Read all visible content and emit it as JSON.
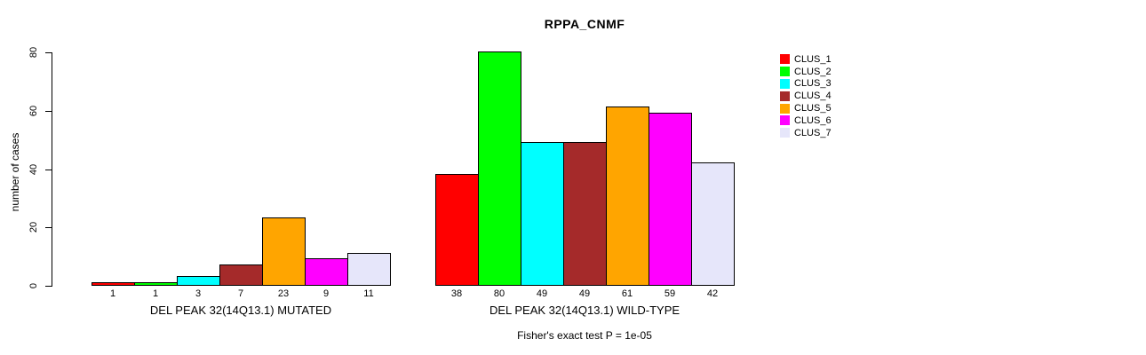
{
  "chart_data": {
    "type": "bar",
    "title": "RPPA_CNMF",
    "ylabel": "number of cases",
    "xlabel": "",
    "ylim": [
      0,
      80
    ],
    "yticks": [
      0,
      20,
      40,
      60,
      80
    ],
    "grid": false,
    "legend_position": "top-right",
    "clusters": [
      "CLUS_1",
      "CLUS_2",
      "CLUS_3",
      "CLUS_4",
      "CLUS_5",
      "CLUS_6",
      "CLUS_7"
    ],
    "colors": [
      "#FF0000",
      "#00FF00",
      "#00FFFF",
      "#A52A2A",
      "#FFA500",
      "#FF00FF",
      "#E6E6FA"
    ],
    "groups": [
      {
        "label": "DEL PEAK 32(14Q13.1) MUTATED",
        "values": [
          1,
          1,
          3,
          7,
          23,
          9,
          11
        ]
      },
      {
        "label": "DEL PEAK 32(14Q13.1) WILD-TYPE",
        "values": [
          38,
          80,
          49,
          49,
          61,
          59,
          42
        ]
      }
    ],
    "annotation": "Fisher's exact test P = 1e-05"
  }
}
